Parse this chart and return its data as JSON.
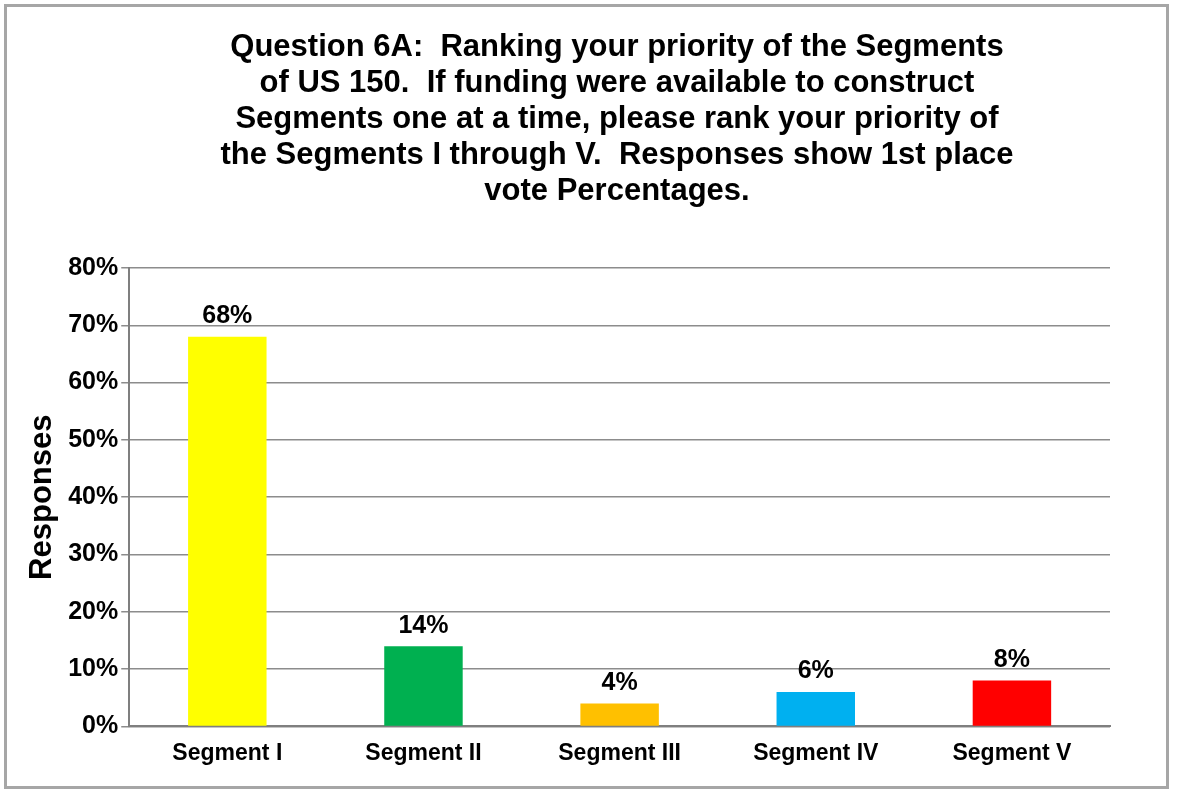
{
  "chart_data": {
    "type": "bar",
    "title": "Question 6A:  Ranking your priority of the Segments of US 150.  If funding were available to construct Segments one at a time, please rank your priority of the Segments I through V.  Responses show 1st place vote Percentages.",
    "ylabel": "Responses",
    "categories": [
      "Segment I",
      "Segment II",
      "Segment III",
      "Segment IV",
      "Segment V"
    ],
    "values": [
      68,
      14,
      4,
      6,
      8
    ],
    "colors": [
      "#ffff00",
      "#00b050",
      "#ffc000",
      "#00b0f0",
      "#ff0000"
    ],
    "value_labels": [
      "68%",
      "14%",
      "4%",
      "6%",
      "8%"
    ],
    "ylim": [
      0,
      80
    ],
    "yticks": [
      {
        "value": 0,
        "label": "0%"
      },
      {
        "value": 10,
        "label": "10%"
      },
      {
        "value": 20,
        "label": "20%"
      },
      {
        "value": 30,
        "label": "30%"
      },
      {
        "value": 40,
        "label": "40%"
      },
      {
        "value": 50,
        "label": "50%"
      },
      {
        "value": 60,
        "label": "60%"
      },
      {
        "value": 70,
        "label": "70%"
      },
      {
        "value": 80,
        "label": "80%"
      }
    ],
    "grid": "y",
    "legend": false
  }
}
